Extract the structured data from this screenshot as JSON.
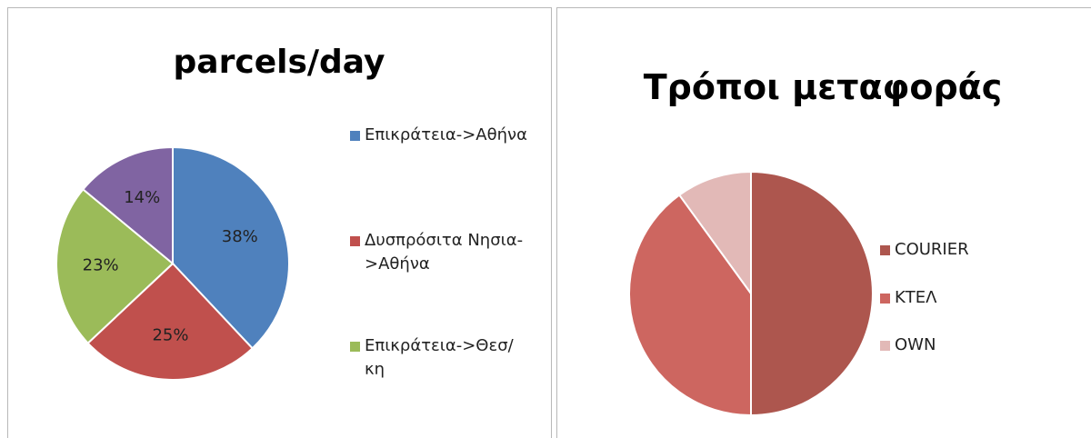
{
  "chart_data": [
    {
      "type": "pie",
      "title": "parcels/day",
      "categories": [
        "Επικράτεια->Αθήνα",
        "Δυσπρόσιτα Νησια->Αθήνα",
        "Επικράτεια->Θεσ/κη",
        null
      ],
      "values": [
        38,
        25,
        23,
        14
      ],
      "value_labels": [
        "38%",
        "25%",
        "23%",
        "14%"
      ],
      "colors": [
        "#4f81bd",
        "#c0504d",
        "#9bbb59",
        "#8064a2"
      ]
    },
    {
      "type": "pie",
      "title": "Τρόποι μεταφοράς",
      "categories": [
        "COURIER",
        "ΚΤΕΛ",
        "OWN"
      ],
      "values": [
        50,
        40,
        10
      ],
      "colors": [
        "#ad564e",
        "#cd6660",
        "#e2b9b7"
      ]
    }
  ]
}
